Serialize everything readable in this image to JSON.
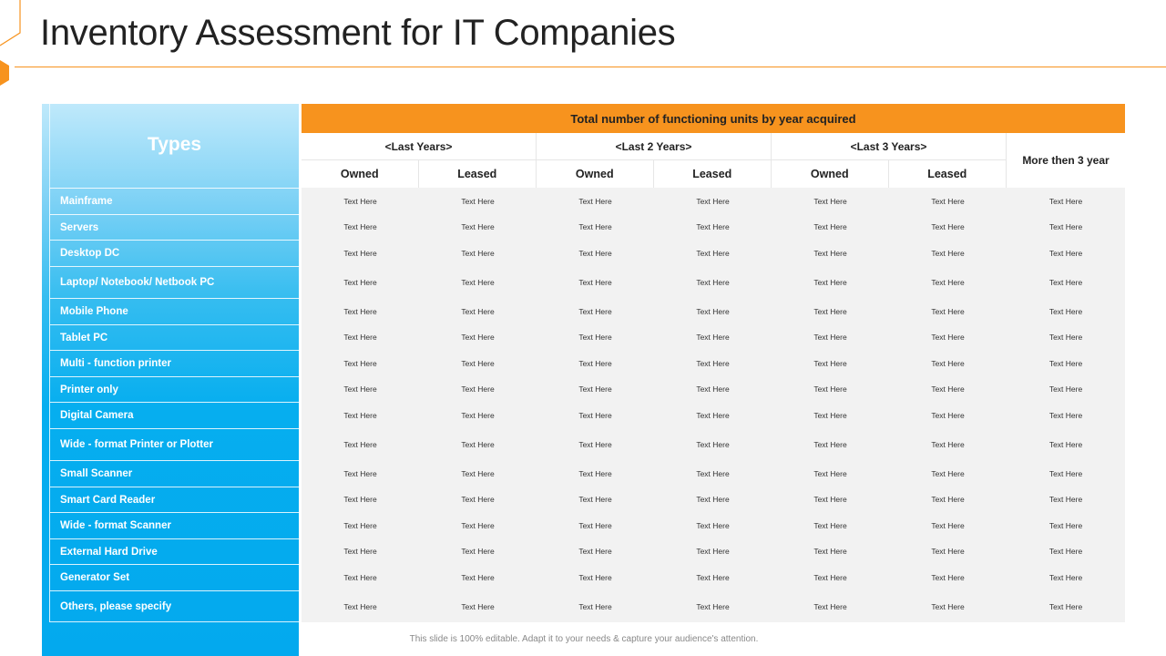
{
  "title": "Inventory Assessment for IT Companies",
  "colors": {
    "accent": "#f7931e",
    "panel": "#03a9ee",
    "cell_bg": "#f2f2f2"
  },
  "table": {
    "types_label": "Types",
    "top_header": "Total number of functioning units by year acquired",
    "groups": [
      {
        "label": "<Last Years>",
        "cols": [
          "Owned",
          "Leased"
        ]
      },
      {
        "label": "<Last 2 Years>",
        "cols": [
          "Owned",
          "Leased"
        ]
      },
      {
        "label": "<Last 3 Years>",
        "cols": [
          "Owned",
          "Leased"
        ]
      }
    ],
    "more_label": "More then 3 year",
    "rows": [
      {
        "type": "Mainframe",
        "cells": [
          "Text Here",
          "Text Here",
          "Text Here",
          "Text Here",
          "Text Here",
          "Text Here",
          "Text Here"
        ]
      },
      {
        "type": "Servers",
        "cells": [
          "Text Here",
          "Text Here",
          "Text Here",
          "Text Here",
          "Text Here",
          "Text Here",
          "Text Here"
        ]
      },
      {
        "type": "Desktop DC",
        "cells": [
          "Text Here",
          "Text Here",
          "Text Here",
          "Text Here",
          "Text Here",
          "Text Here",
          "Text Here"
        ]
      },
      {
        "type": "Laptop/ Notebook/ Netbook PC",
        "cells": [
          "Text Here",
          "Text Here",
          "Text Here",
          "Text Here",
          "Text Here",
          "Text Here",
          "Text Here"
        ]
      },
      {
        "type": "Mobile Phone",
        "cells": [
          "Text Here",
          "Text Here",
          "Text Here",
          "Text Here",
          "Text Here",
          "Text Here",
          "Text Here"
        ]
      },
      {
        "type": "Tablet PC",
        "cells": [
          "Text Here",
          "Text Here",
          "Text Here",
          "Text Here",
          "Text Here",
          "Text Here",
          "Text Here"
        ]
      },
      {
        "type": "Multi - function printer",
        "cells": [
          "Text Here",
          "Text Here",
          "Text Here",
          "Text Here",
          "Text Here",
          "Text Here",
          "Text Here"
        ]
      },
      {
        "type": "Printer only",
        "cells": [
          "Text Here",
          "Text Here",
          "Text Here",
          "Text Here",
          "Text Here",
          "Text Here",
          "Text Here"
        ]
      },
      {
        "type": "Digital Camera",
        "cells": [
          "Text Here",
          "Text Here",
          "Text Here",
          "Text Here",
          "Text Here",
          "Text Here",
          "Text Here"
        ]
      },
      {
        "type": "Wide - format Printer or Plotter",
        "cells": [
          "Text Here",
          "Text Here",
          "Text Here",
          "Text Here",
          "Text Here",
          "Text Here",
          "Text Here"
        ]
      },
      {
        "type": "Small Scanner",
        "cells": [
          "Text Here",
          "Text Here",
          "Text Here",
          "Text Here",
          "Text Here",
          "Text Here",
          "Text Here"
        ]
      },
      {
        "type": "Smart Card Reader",
        "cells": [
          "Text Here",
          "Text Here",
          "Text Here",
          "Text Here",
          "Text Here",
          "Text Here",
          "Text Here"
        ]
      },
      {
        "type": "Wide - format Scanner",
        "cells": [
          "Text Here",
          "Text Here",
          "Text Here",
          "Text Here",
          "Text Here",
          "Text Here",
          "Text Here"
        ]
      },
      {
        "type": "External Hard Drive",
        "cells": [
          "Text Here",
          "Text Here",
          "Text Here",
          "Text Here",
          "Text Here",
          "Text Here",
          "Text Here"
        ]
      },
      {
        "type": "Generator Set",
        "cells": [
          "Text Here",
          "Text Here",
          "Text Here",
          "Text Here",
          "Text Here",
          "Text Here",
          "Text Here"
        ]
      },
      {
        "type": "Others, please specify",
        "cells": [
          "Text Here",
          "Text Here",
          "Text Here",
          "Text Here",
          "Text Here",
          "Text Here",
          "Text Here"
        ]
      }
    ]
  },
  "footnote": "This slide is 100% editable. Adapt it to your needs & capture your audience's attention."
}
